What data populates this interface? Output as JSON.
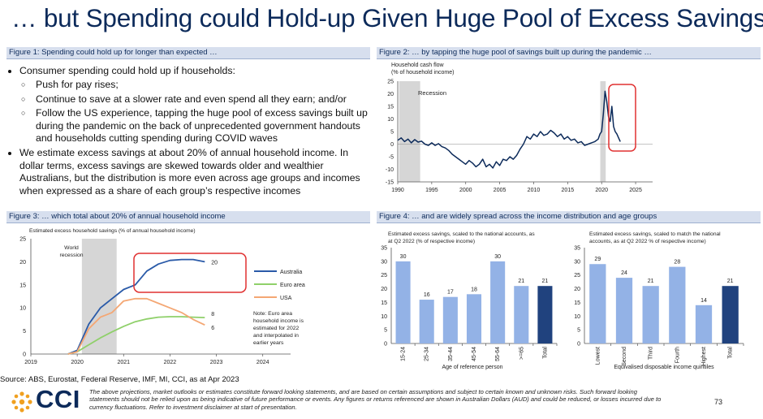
{
  "title": "… but Spending could Hold-up Given Huge Pool of Excess Savings",
  "fig1": {
    "header": "Figure 1: Spending could hold up for longer than expected …"
  },
  "bullets": {
    "b1": "Consumer spending could hold up if households:",
    "sub": [
      "Push for pay rises;",
      "Continue to save at a slower rate and even spend all they earn; and/or",
      "Follow the US experience, tapping the huge pool of excess savings built up during the pandemic  on the back of unprecedented government handouts and households cutting spending during COVID waves"
    ],
    "b2": "We estimate excess savings at about 20% of annual household income. In dollar terms, excess savings are skewed towards older and wealthier Australians, but the distribution is more even across age groups and incomes when expressed as a share of each group’s respective incomes"
  },
  "fig2": {
    "header": "Figure 2: … by tapping the huge pool of savings built up during the pandemic …",
    "ylabel_1": "Household cash flow",
    "ylabel_2": "(% of household income)",
    "recession_label": "Recession"
  },
  "fig3": {
    "header": "Figure 3: … which total about 20% of annual household income",
    "ylabel": "Estimated excess household savings (% of annual household income)",
    "recession_label_1": "World",
    "recession_label_2": "recession",
    "note": [
      "Note: Euro area",
      "household income is",
      "estimated for 2022",
      "and interpolated in",
      "earlier years"
    ]
  },
  "fig4": {
    "header": "Figure 4: … and are widely spread across the income distribution and age groups",
    "left_title_1": "Estimated excess savings, scaled to the national accounts, as",
    "left_title_2": "at Q2 2022 (% of respective income)",
    "left_xlabel": "Age of reference person",
    "right_title_1": "Estimated excess savings, scaled to match the national",
    "right_title_2": "accounts, as at Q2 2022 % of respective income)",
    "right_xlabel": "Equivalised disposable income quintiles"
  },
  "colors": {
    "navy": "#0c2a5a",
    "australia": "#2a5aa8",
    "euro": "#8fd06a",
    "usa": "#f4a774",
    "bar_light": "#93b2e6",
    "bar_dark": "#20427e",
    "recession": "#d6d6d6",
    "highlight": "#e03030"
  },
  "chart_data": [
    {
      "type": "line",
      "title": "Figure 2: … by tapping the huge pool of savings built up during the pandemic …",
      "ylabel": "Household cash flow (% of household income)",
      "xlim": [
        1990,
        2027.5
      ],
      "ylim": [
        -15,
        25
      ],
      "x_ticks": [
        "1990",
        "1995",
        "2000",
        "2005",
        "2010",
        "2015",
        "2020",
        "2025"
      ],
      "y_ticks": [
        "-15",
        "-10",
        "-5",
        "0",
        "5",
        "10",
        "15",
        "20",
        "25"
      ],
      "recession_shading": [
        1990.2,
        1993.3
      ],
      "covid_shading": [
        2019.8,
        2020.6
      ],
      "series": [
        {
          "name": "Household cash flow",
          "points": [
            [
              1990.0,
              1.5
            ],
            [
              1990.5,
              2.5
            ],
            [
              1991.0,
              1.0
            ],
            [
              1991.5,
              2.0
            ],
            [
              1992.0,
              0.5
            ],
            [
              1992.5,
              1.8
            ],
            [
              1993.0,
              0.8
            ],
            [
              1993.5,
              1.2
            ],
            [
              1994.0,
              0.0
            ],
            [
              1994.5,
              -0.5
            ],
            [
              1995.0,
              0.5
            ],
            [
              1995.5,
              -0.5
            ],
            [
              1996.0,
              0.2
            ],
            [
              1996.5,
              -1.0
            ],
            [
              1997.0,
              -1.5
            ],
            [
              1997.5,
              -2.5
            ],
            [
              1998.0,
              -4.0
            ],
            [
              1998.5,
              -5.0
            ],
            [
              1999.0,
              -6.0
            ],
            [
              1999.5,
              -7.0
            ],
            [
              2000.0,
              -8.0
            ],
            [
              2000.5,
              -6.5
            ],
            [
              2001.0,
              -7.5
            ],
            [
              2001.5,
              -9.0
            ],
            [
              2002.0,
              -8.0
            ],
            [
              2002.5,
              -6.0
            ],
            [
              2003.0,
              -9.0
            ],
            [
              2003.5,
              -8.0
            ],
            [
              2004.0,
              -9.5
            ],
            [
              2004.5,
              -7.0
            ],
            [
              2005.0,
              -8.5
            ],
            [
              2005.5,
              -6.0
            ],
            [
              2006.0,
              -6.5
            ],
            [
              2006.5,
              -5.0
            ],
            [
              2007.0,
              -6.0
            ],
            [
              2007.5,
              -4.5
            ],
            [
              2008.0,
              -2.0
            ],
            [
              2008.5,
              0.0
            ],
            [
              2009.0,
              3.0
            ],
            [
              2009.5,
              2.0
            ],
            [
              2010.0,
              4.0
            ],
            [
              2010.5,
              3.0
            ],
            [
              2011.0,
              5.0
            ],
            [
              2011.5,
              3.5
            ],
            [
              2012.0,
              4.0
            ],
            [
              2012.5,
              5.5
            ],
            [
              2013.0,
              4.5
            ],
            [
              2013.5,
              3.0
            ],
            [
              2014.0,
              4.0
            ],
            [
              2014.5,
              2.0
            ],
            [
              2015.0,
              3.0
            ],
            [
              2015.5,
              1.5
            ],
            [
              2016.0,
              2.0
            ],
            [
              2016.5,
              0.5
            ],
            [
              2017.0,
              1.0
            ],
            [
              2017.5,
              -0.5
            ],
            [
              2018.0,
              0.0
            ],
            [
              2018.5,
              0.5
            ],
            [
              2019.0,
              1.0
            ],
            [
              2019.5,
              2.0
            ],
            [
              2019.75,
              4.0
            ],
            [
              2020.0,
              5.0
            ],
            [
              2020.25,
              12.0
            ],
            [
              2020.5,
              21.0
            ],
            [
              2020.75,
              17.0
            ],
            [
              2021.0,
              11.0
            ],
            [
              2021.25,
              9.0
            ],
            [
              2021.5,
              15.0
            ],
            [
              2021.75,
              7.0
            ],
            [
              2022.0,
              5.0
            ],
            [
              2022.25,
              4.0
            ],
            [
              2022.5,
              2.5
            ],
            [
              2022.75,
              1.0
            ]
          ]
        }
      ]
    },
    {
      "type": "line",
      "title": "Figure 3: … which total about 20% of annual household income",
      "ylabel": "Estimated excess household savings (% of annual household income)",
      "xlim": [
        2019,
        2024.6
      ],
      "ylim": [
        0,
        25
      ],
      "x_ticks": [
        "2019",
        "2020",
        "2021",
        "2022",
        "2023",
        "2024"
      ],
      "y_ticks": [
        "0",
        "5",
        "10",
        "15",
        "20",
        "25"
      ],
      "recession_shading": [
        2020.1,
        2020.85
      ],
      "series": [
        {
          "name": "Australia",
          "end_label": "20",
          "points": [
            [
              2019.8,
              0.0
            ],
            [
              2020.0,
              0.8
            ],
            [
              2020.25,
              6.5
            ],
            [
              2020.5,
              10.0
            ],
            [
              2020.75,
              12.0
            ],
            [
              2021.0,
              14.0
            ],
            [
              2021.25,
              15.0
            ],
            [
              2021.5,
              18.0
            ],
            [
              2021.75,
              19.5
            ],
            [
              2022.0,
              20.3
            ],
            [
              2022.25,
              20.5
            ],
            [
              2022.5,
              20.5
            ],
            [
              2022.75,
              20.0
            ]
          ]
        },
        {
          "name": "Euro area",
          "end_label": "8",
          "points": [
            [
              2019.8,
              0.0
            ],
            [
              2020.0,
              0.5
            ],
            [
              2020.25,
              2.0
            ],
            [
              2020.5,
              3.5
            ],
            [
              2020.75,
              4.8
            ],
            [
              2021.0,
              6.0
            ],
            [
              2021.25,
              7.0
            ],
            [
              2021.5,
              7.6
            ],
            [
              2021.75,
              8.0
            ],
            [
              2022.0,
              8.1
            ],
            [
              2022.25,
              8.1
            ],
            [
              2022.5,
              8.0
            ],
            [
              2022.75,
              7.9
            ]
          ]
        },
        {
          "name": "USA",
          "end_label": "6",
          "points": [
            [
              2019.8,
              0.0
            ],
            [
              2020.0,
              0.5
            ],
            [
              2020.25,
              5.5
            ],
            [
              2020.5,
              8.0
            ],
            [
              2020.75,
              9.0
            ],
            [
              2021.0,
              11.5
            ],
            [
              2021.25,
              12.0
            ],
            [
              2021.5,
              12.0
            ],
            [
              2021.75,
              11.0
            ],
            [
              2022.0,
              10.0
            ],
            [
              2022.25,
              9.0
            ],
            [
              2022.5,
              7.5
            ],
            [
              2022.75,
              6.3
            ]
          ]
        }
      ]
    },
    {
      "type": "bar",
      "title": "Estimated excess savings, scaled to the national accounts, as at Q2 2022 (% of respective income)",
      "xlabel": "Age of reference person",
      "ylim": [
        0,
        35
      ],
      "y_ticks": [
        "0",
        "5",
        "10",
        "15",
        "20",
        "25",
        "30",
        "35"
      ],
      "categories": [
        "15-24",
        "25-34",
        "35-44",
        "45-54",
        "55-64",
        ">=65",
        "Total"
      ],
      "values": [
        30,
        16,
        17,
        18,
        30,
        21,
        21
      ],
      "labels": [
        "30",
        "16",
        "17",
        "18",
        "30",
        "21",
        "21"
      ],
      "highlight_last": true
    },
    {
      "type": "bar",
      "title": "Estimated excess savings, scaled to match the national accounts, as at Q2 2022 % of respective income)",
      "xlabel": "Equivalised disposable income quintiles",
      "ylim": [
        0,
        35
      ],
      "y_ticks": [
        "0",
        "5",
        "10",
        "15",
        "20",
        "25",
        "30",
        "35"
      ],
      "categories": [
        "Lowest",
        "Second",
        "Third",
        "Fourth",
        "Highest",
        "Total"
      ],
      "values": [
        29,
        24,
        21,
        28,
        14,
        21
      ],
      "labels": [
        "29",
        "24",
        "21",
        "28",
        "14",
        "21"
      ],
      "highlight_last": true
    }
  ],
  "footer": {
    "source": "Source: ABS, Eurostat, Federal Reserve, IMF, MI, CCI, as at Apr 2023",
    "disclaimer": "The above projections, market outlooks or estimates constitute forward looking statements, and are based on certain assumptions and subject to certain known and unknown risks. Such forward looking statements should not be relied upon as being indicative of future performance or events. Any figures or returns referenced are shown in Australian Dollars (AUD) and could be reduced, or losses incurred due to currency fluctuations. Refer to investment disclaimer at start of presentation.",
    "page_number": "73",
    "logo_text": "CCI"
  }
}
